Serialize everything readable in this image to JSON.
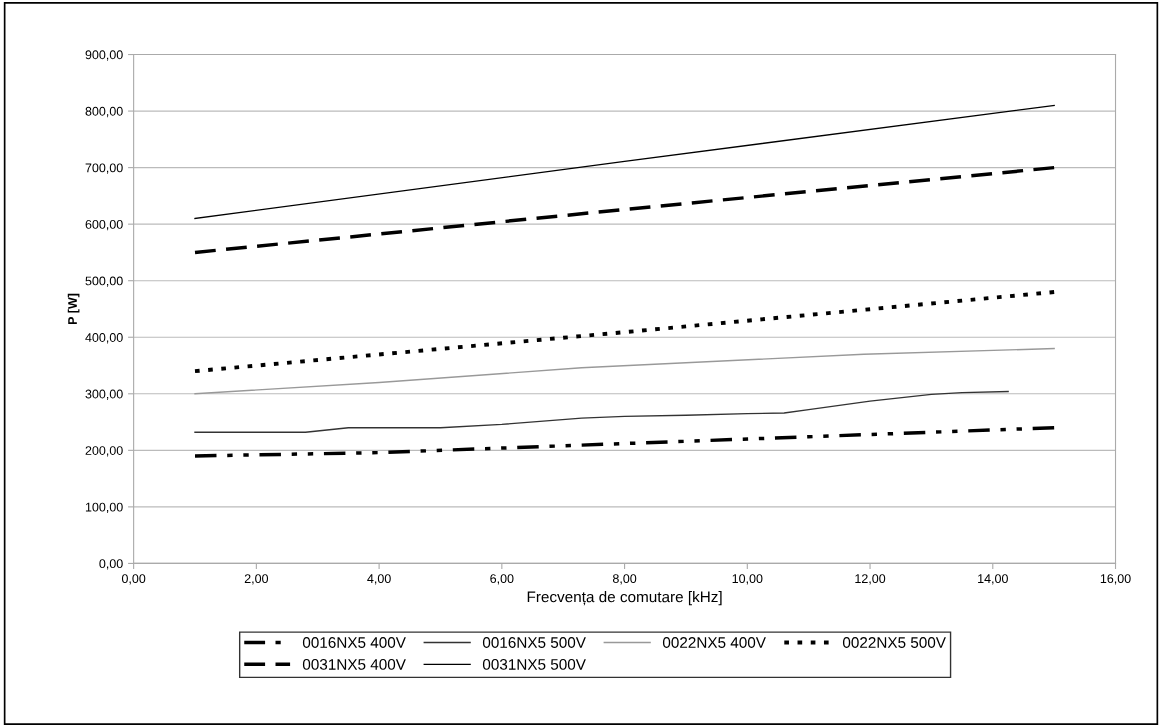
{
  "chart_data": {
    "type": "line",
    "xlabel": "Frecvența de comutare [kHz]",
    "ylabel": "P [W]",
    "xlim": [
      0,
      16
    ],
    "ylim": [
      0,
      900
    ],
    "xticks": [
      {
        "value": 0,
        "label": "0,00"
      },
      {
        "value": 2,
        "label": "2,00"
      },
      {
        "value": 4,
        "label": "4,00"
      },
      {
        "value": 6,
        "label": "6,00"
      },
      {
        "value": 8,
        "label": "8,00"
      },
      {
        "value": 10,
        "label": "10,00"
      },
      {
        "value": 12,
        "label": "12,00"
      },
      {
        "value": 14,
        "label": "14,00"
      },
      {
        "value": 16,
        "label": "16,00"
      }
    ],
    "yticks": [
      {
        "value": 0,
        "label": "0,00"
      },
      {
        "value": 100,
        "label": "100,00"
      },
      {
        "value": 200,
        "label": "200,00"
      },
      {
        "value": 300,
        "label": "300,00"
      },
      {
        "value": 400,
        "label": "400,00"
      },
      {
        "value": 500,
        "label": "500,00"
      },
      {
        "value": 600,
        "label": "600,00"
      },
      {
        "value": 700,
        "label": "700,00"
      },
      {
        "value": 800,
        "label": "800,00"
      },
      {
        "value": 900,
        "label": "900,00"
      }
    ],
    "grid": "y",
    "legend": "bottom",
    "marker": "none",
    "series": [
      {
        "name": "0016NX5 400V",
        "color": "#000000",
        "line_style": "dashdot",
        "x": [
          1,
          4,
          8,
          11,
          15
        ],
        "values": [
          190,
          196,
          212,
          224,
          240
        ]
      },
      {
        "name": "0016NX5 500V",
        "color": "#333333",
        "line_style": "solid",
        "x": [
          1,
          2,
          2.8,
          3.5,
          5,
          6,
          7.3,
          8,
          9,
          10,
          10.6,
          11,
          12,
          13,
          13.5,
          14.25
        ],
        "values": [
          232,
          232,
          232,
          240,
          240,
          246,
          257,
          260,
          262,
          265,
          266,
          272,
          287,
          299,
          302,
          304
        ]
      },
      {
        "name": "0022NX5 400V",
        "color": "#999999",
        "line_style": "solid",
        "x": [
          1,
          4,
          7.3,
          11.9,
          15
        ],
        "values": [
          300,
          320,
          346,
          370,
          380
        ]
      },
      {
        "name": "0022NX5 500V",
        "color": "#000000",
        "line_style": "dotted",
        "x": [
          1,
          8,
          15
        ],
        "values": [
          340,
          409,
          480
        ]
      },
      {
        "name": "0031NX5 400V",
        "color": "#000000",
        "line_style": "dashed",
        "x": [
          1,
          8,
          15
        ],
        "values": [
          550,
          626,
          700
        ]
      },
      {
        "name": "0031NX5 500V",
        "color": "#000000",
        "line_style": "solid",
        "x": [
          1,
          8,
          15
        ],
        "values": [
          610,
          711,
          810
        ]
      }
    ]
  }
}
